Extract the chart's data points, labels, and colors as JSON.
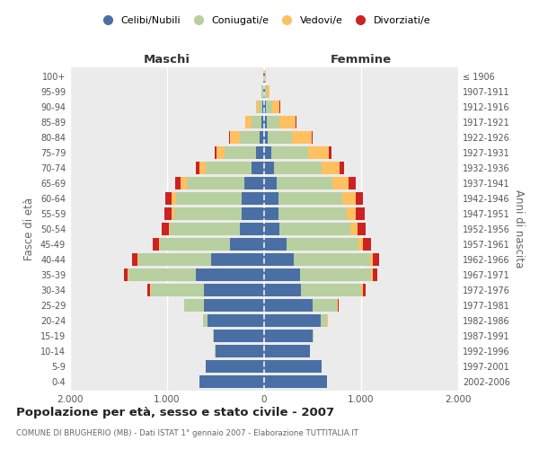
{
  "age_groups": [
    "0-4",
    "5-9",
    "10-14",
    "15-19",
    "20-24",
    "25-29",
    "30-34",
    "35-39",
    "40-44",
    "45-49",
    "50-54",
    "55-59",
    "60-64",
    "65-69",
    "70-74",
    "75-79",
    "80-84",
    "85-89",
    "90-94",
    "95-99",
    "100+"
  ],
  "birth_years": [
    "2002-2006",
    "1997-2001",
    "1992-1996",
    "1987-1991",
    "1982-1986",
    "1977-1981",
    "1972-1976",
    "1967-1971",
    "1962-1966",
    "1957-1961",
    "1952-1956",
    "1947-1951",
    "1942-1946",
    "1937-1941",
    "1932-1936",
    "1927-1931",
    "1922-1926",
    "1917-1921",
    "1912-1916",
    "1907-1911",
    "≤ 1906"
  ],
  "colors": {
    "celibi": "#4a6fa5",
    "coniugati": "#b8cfa0",
    "vedovi": "#ffc060",
    "divorziati": "#cc2222"
  },
  "males": {
    "celibi": [
      670,
      600,
      500,
      520,
      580,
      620,
      620,
      700,
      550,
      350,
      250,
      230,
      230,
      200,
      130,
      80,
      50,
      30,
      20,
      10,
      5
    ],
    "coniugati": [
      0,
      0,
      5,
      10,
      50,
      200,
      550,
      700,
      750,
      720,
      720,
      700,
      680,
      600,
      470,
      330,
      200,
      100,
      40,
      15,
      5
    ],
    "vedovi": [
      0,
      0,
      0,
      0,
      0,
      0,
      5,
      5,
      5,
      10,
      15,
      25,
      40,
      60,
      70,
      80,
      100,
      60,
      20,
      5,
      0
    ],
    "divorziati": [
      0,
      0,
      0,
      0,
      0,
      5,
      25,
      40,
      55,
      65,
      70,
      75,
      70,
      60,
      30,
      15,
      10,
      5,
      5,
      0,
      0
    ]
  },
  "females": {
    "celibi": [
      650,
      590,
      470,
      500,
      580,
      500,
      380,
      370,
      310,
      230,
      160,
      150,
      150,
      130,
      100,
      70,
      40,
      25,
      20,
      10,
      5
    ],
    "coniugati": [
      0,
      0,
      5,
      10,
      70,
      250,
      620,
      730,
      780,
      740,
      730,
      700,
      660,
      570,
      490,
      380,
      250,
      130,
      60,
      20,
      5
    ],
    "vedovi": [
      0,
      0,
      0,
      0,
      5,
      5,
      15,
      20,
      30,
      50,
      70,
      95,
      130,
      170,
      190,
      220,
      200,
      170,
      80,
      30,
      5
    ],
    "divorziati": [
      0,
      0,
      0,
      0,
      5,
      10,
      30,
      50,
      65,
      80,
      85,
      90,
      80,
      70,
      40,
      20,
      10,
      5,
      5,
      0,
      0
    ]
  },
  "title": "Popolazione per età, sesso e stato civile - 2007",
  "subtitle": "COMUNE DI BRUGHERIO (MB) - Dati ISTAT 1° gennaio 2007 - Elaborazione TUTTITALIA.IT",
  "xlabel_left": "Maschi",
  "xlabel_right": "Femmine",
  "ylabel_left": "Fasce di età",
  "ylabel_right": "Anni di nascita",
  "xlim": 2000,
  "xticklabels": [
    "2.000",
    "1.000",
    "0",
    "1.000",
    "2.000"
  ],
  "legend_labels": [
    "Celibi/Nubili",
    "Coniugati/e",
    "Vedovi/e",
    "Divorziati/e"
  ],
  "background_color": "#ebebeb"
}
